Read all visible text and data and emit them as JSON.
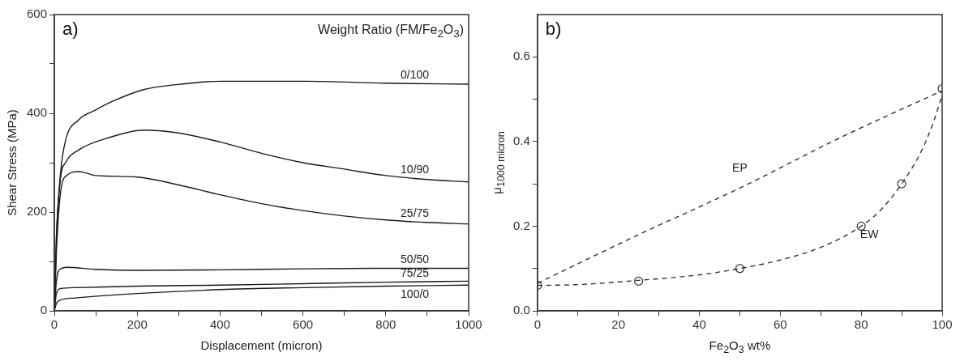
{
  "chart_data": [
    {
      "type": "line",
      "xlabel": "Displacement (micron)",
      "ylabel": "Shear Stress (MPa)",
      "legend_title": "Weight Ratio (FM/Fe$_{2}$O$_{3}$)",
      "annotations": [
        "a)"
      ],
      "xlim": [
        0,
        1000
      ],
      "ylim": [
        0,
        600
      ],
      "xticks": [
        0,
        {
          "value": 100,
          "label": null
        },
        200,
        {
          "value": 300,
          "label": null
        },
        400,
        {
          "value": 500,
          "label": null
        },
        600,
        {
          "value": 700,
          "label": null
        },
        800,
        {
          "value": 900,
          "label": null
        },
        1000
      ],
      "yticks": [
        0,
        {
          "value": 100,
          "label": null
        },
        200,
        {
          "value": 300,
          "label": null
        },
        400,
        {
          "value": 500,
          "label": null
        },
        600
      ],
      "series": [
        {
          "name": "0/100",
          "color": "#1a1a1a",
          "x": [
            0,
            5,
            15,
            27,
            59,
            98,
            137,
            215,
            293,
            402,
            605,
            800,
            1000
          ],
          "values": [
            0,
            150,
            280,
            345,
            387,
            406,
            423,
            448,
            458,
            465,
            465,
            461,
            459
          ]
        },
        {
          "name": "10/90",
          "color": "#1a1a1a",
          "x": [
            0,
            5,
            15,
            27,
            59,
            137,
            215,
            293,
            400,
            500,
            600,
            700,
            800,
            900,
            1000
          ],
          "values": [
            0,
            150,
            270,
            300,
            326,
            352,
            366,
            361,
            342,
            319,
            300,
            287,
            274,
            266,
            261
          ]
        },
        {
          "name": "25/75",
          "color": "#1a1a1a",
          "x": [
            0,
            5,
            15,
            30,
            59,
            100,
            200,
            300,
            400,
            500,
            600,
            700,
            800,
            900,
            1000
          ],
          "values": [
            0,
            120,
            240,
            274,
            282,
            274,
            271,
            255,
            235,
            217,
            203,
            192,
            184,
            179,
            176
          ]
        },
        {
          "name": "50/50",
          "color": "#1a1a1a",
          "x": [
            0,
            5,
            15,
            30,
            100,
            200,
            400,
            600,
            800,
            1000
          ],
          "values": [
            0,
            60,
            85,
            88,
            84,
            82,
            83,
            85,
            86,
            86
          ]
        },
        {
          "name": "75/25",
          "color": "#1a1a1a",
          "x": [
            0,
            5,
            15,
            50,
            200,
            400,
            600,
            800,
            1000
          ],
          "values": [
            0,
            35,
            45,
            47,
            50,
            52,
            55,
            58,
            60
          ]
        },
        {
          "name": "100/0",
          "color": "#1a1a1a",
          "x": [
            0,
            5,
            15,
            50,
            200,
            400,
            600,
            800,
            1000
          ],
          "values": [
            0,
            15,
            22,
            26,
            35,
            43,
            47,
            50,
            52
          ]
        }
      ]
    },
    {
      "type": "line",
      "xlabel": "Fe$_{2}$O$_{3}$ wt%",
      "ylabel": "μ$_{1000 micron}$",
      "annotations": [
        "b)"
      ],
      "line_style": "dashed",
      "xlim": [
        0,
        100
      ],
      "ylim": [
        0,
        0.7
      ],
      "xticks": [
        0,
        {
          "value": 10,
          "label": null
        },
        20,
        {
          "value": 30,
          "label": null
        },
        40,
        {
          "value": 50,
          "label": null
        },
        60,
        {
          "value": 70,
          "label": null
        },
        80,
        {
          "value": 90,
          "label": null
        },
        100
      ],
      "yticks": [
        {
          "value": 0,
          "label": "0.0"
        },
        {
          "value": 0.1,
          "label": null
        },
        0.2,
        {
          "value": 0.3,
          "label": null
        },
        0.4,
        {
          "value": 0.5,
          "label": null
        },
        0.6
      ],
      "series": [
        {
          "type": "scatter",
          "marker": "circle",
          "color": "#333333",
          "x": [
            0,
            25,
            50,
            80,
            90,
            100
          ],
          "values": [
            0.06,
            0.07,
            0.1,
            0.2,
            0.3,
            0.525
          ]
        },
        {
          "name": "EP",
          "marker": "none",
          "color": "#333333",
          "x": [
            0,
            25,
            50,
            75,
            100
          ],
          "values": [
            0.065,
            0.18,
            0.29,
            0.41,
            0.52
          ]
        },
        {
          "name": "EW",
          "marker": "none",
          "color": "#333333",
          "x": [
            0,
            10,
            25,
            40,
            50,
            60,
            70,
            80,
            85,
            90,
            95,
            98,
            100
          ],
          "values": [
            0.06,
            0.062,
            0.072,
            0.085,
            0.1,
            0.12,
            0.15,
            0.2,
            0.24,
            0.3,
            0.38,
            0.45,
            0.51
          ]
        }
      ]
    }
  ]
}
